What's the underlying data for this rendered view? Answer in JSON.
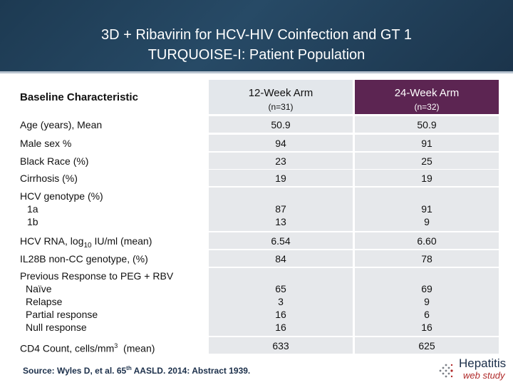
{
  "title": {
    "line1": "3D + Ribavirin for HCV-HIV Coinfection and GT 1",
    "line2": "TURQUOISE-I: Patient Population"
  },
  "table": {
    "header": {
      "characteristic": "Baseline Characteristic",
      "arm1_name": "12-Week Arm",
      "arm1_n": "(n=31)",
      "arm2_name": "24-Week Arm",
      "arm2_n": "(n=32)"
    },
    "rows": {
      "age": {
        "label": "Age (years), Mean",
        "arm1": "50.9",
        "arm2": "50.9"
      },
      "male": {
        "label": "Male sex %",
        "arm1": "94",
        "arm2": "91"
      },
      "black": {
        "label": "Black Race (%)",
        "arm1": "23",
        "arm2": "25"
      },
      "cirrhosis": {
        "label": "Cirrhosis (%)",
        "arm1": "19",
        "arm2": "19"
      },
      "genotype": {
        "label": "HCV genotype (%)",
        "sub1": "1a",
        "sub2": "1b",
        "arm1_1": "87",
        "arm1_2": "13",
        "arm2_1": "91",
        "arm2_2": "9"
      },
      "rna": {
        "label_pre": "HCV RNA, log",
        "label_sub": "10",
        "label_post": " IU/ml (mean)",
        "arm1": "6.54",
        "arm2": "6.60"
      },
      "il28b": {
        "label": "IL28B non-CC genotype, (%)",
        "arm1": "84",
        "arm2": "78"
      },
      "prev": {
        "label": "Previous Response to PEG + RBV",
        "sub1": "Naïve",
        "sub2": "Relapse",
        "sub3": "Partial response",
        "sub4": "Null response",
        "arm1_1": "65",
        "arm1_2": "3",
        "arm1_3": "16",
        "arm1_4": "16",
        "arm2_1": "69",
        "arm2_2": "9",
        "arm2_3": "6",
        "arm2_4": "16"
      },
      "cd4": {
        "label_pre": "CD4 Count, cells/mm",
        "label_sup": "3",
        "label_post": "  (mean)",
        "arm1": "633",
        "arm2": "625"
      }
    }
  },
  "footer": {
    "source_pre": "Source: Wyles D, et al. 65",
    "source_sup": "th",
    "source_post": " AASLD. 2014: Abstract 1939."
  },
  "logo": {
    "line1": "Hepatitis",
    "line2": "web study"
  }
}
